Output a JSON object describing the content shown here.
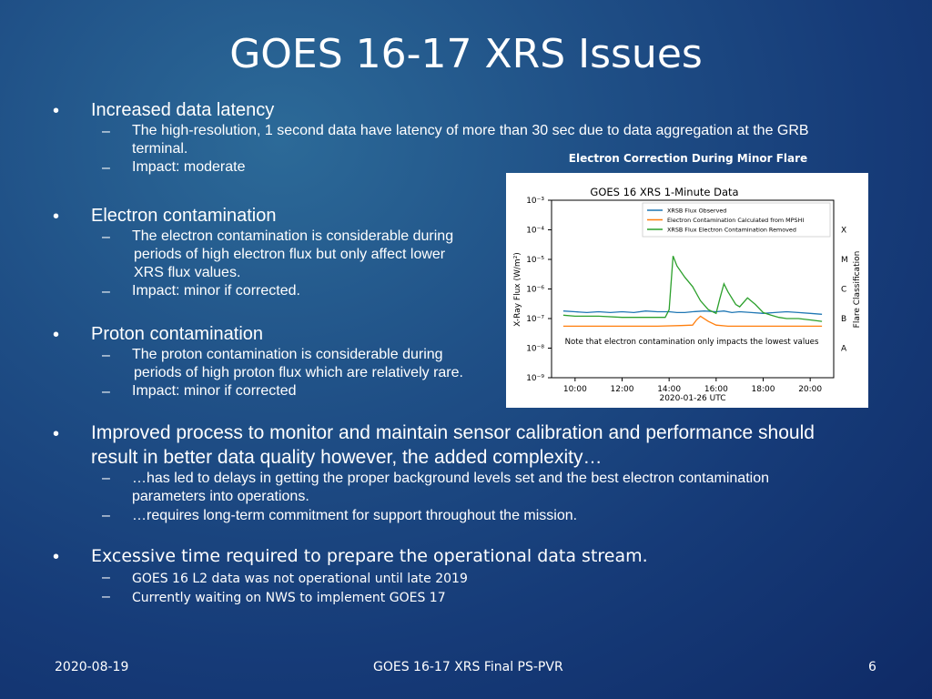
{
  "slide": {
    "title": "GOES 16-17 XRS Issues",
    "bullet_symbol": "•",
    "dash_symbol": "–",
    "sections": [
      {
        "heading": "Increased data latency",
        "items": [
          [
            "The high-resolution, 1 second data have latency of more than 30 sec due to data aggregation at the GRB",
            "terminal."
          ],
          [
            "Impact:  moderate"
          ]
        ]
      },
      {
        "heading": "Electron contamination",
        "items": [
          [
            "The electron contamination is considerable during",
            "periods of high electron flux but only affect lower",
            "XRS flux values."
          ],
          [
            "Impact: minor if corrected."
          ]
        ]
      },
      {
        "heading": "Proton contamination",
        "items": [
          [
            "The proton contamination is considerable during",
            "periods of high proton flux which are relatively rare."
          ],
          [
            "Impact: minor if corrected"
          ]
        ]
      },
      {
        "heading": [
          "Improved process to monitor and maintain sensor calibration and performance should",
          "result in better data quality however, the added complexity…"
        ],
        "items": [
          [
            "…has led to delays in getting the proper background levels set and the best electron contamination",
            "parameters into operations."
          ],
          [
            "…requires long-term commitment for support throughout the mission."
          ]
        ]
      },
      {
        "heading": "Excessive time required to prepare the operational data stream.",
        "items": [
          [
            "GOES 16 L2 data was not operational until late 2019"
          ],
          [
            "Currently waiting on NWS to implement GOES 17"
          ]
        ]
      }
    ],
    "footer": {
      "date": "2020-08-19",
      "center": "GOES  16-17 XRS Final PS-PVR",
      "page": "6"
    }
  },
  "figure": {
    "caption": "Electron Correction During Minor Flare",
    "annotation": "Note that electron contamination only impacts the lowest values"
  },
  "chart_data": {
    "type": "line",
    "title": "GOES 16 XRS 1-Minute Data",
    "xlabel": "2020-01-26 UTC",
    "ylabel": "X-Ray Flux (W/m²)",
    "y2label": "Flare Classification",
    "yscale": "log",
    "ylim": [
      1e-09,
      0.001
    ],
    "xlim": [
      "09:00",
      "21:00"
    ],
    "x_ticks": [
      "10:00",
      "12:00",
      "14:00",
      "16:00",
      "18:00",
      "20:00"
    ],
    "y_ticks": [
      "10⁻³",
      "10⁻⁴",
      "10⁻⁵",
      "10⁻⁶",
      "10⁻⁷",
      "10⁻⁸",
      "10⁻⁹"
    ],
    "flare_classes": [
      "X",
      "M",
      "C",
      "B",
      "A"
    ],
    "legend_position": "top-right",
    "series": [
      {
        "name": "XRSB Flux Observed",
        "color": "#1f77b4",
        "x": [
          "09:30",
          "10:00",
          "10:30",
          "11:00",
          "11:30",
          "12:00",
          "12:30",
          "13:00",
          "13:30",
          "14:00",
          "14:20",
          "14:40",
          "15:00",
          "15:30",
          "16:00",
          "16:20",
          "16:40",
          "17:00",
          "17:30",
          "18:00",
          "18:30",
          "19:00",
          "19:30",
          "20:00",
          "20:30"
        ],
        "values": [
          1.8e-07,
          1.7e-07,
          1.6e-07,
          1.7e-07,
          1.6e-07,
          1.7e-07,
          1.6e-07,
          1.8e-07,
          1.7e-07,
          1.7e-07,
          1.6e-07,
          1.6e-07,
          1.7e-07,
          1.8e-07,
          1.7e-07,
          1.8e-07,
          1.6e-07,
          1.7e-07,
          1.6e-07,
          1.5e-07,
          1.6e-07,
          1.7e-07,
          1.6e-07,
          1.5e-07,
          1.4e-07
        ]
      },
      {
        "name": "Electron Contamination Calculated from MPSHI",
        "color": "#ff7f0e",
        "x": [
          "09:30",
          "10:30",
          "11:30",
          "12:30",
          "13:30",
          "14:30",
          "15:00",
          "15:10",
          "15:20",
          "15:40",
          "16:00",
          "16:30",
          "17:00",
          "18:00",
          "19:00",
          "20:00",
          "20:30"
        ],
        "values": [
          5.5e-08,
          5.5e-08,
          5.5e-08,
          5.5e-08,
          5.5e-08,
          5.8e-08,
          6e-08,
          9e-08,
          1.2e-07,
          8e-08,
          6e-08,
          5.5e-08,
          5.5e-08,
          5.5e-08,
          5.5e-08,
          5.5e-08,
          5.5e-08
        ]
      },
      {
        "name": "XRSB Flux Electron Contamination Removed",
        "color": "#2ca02c",
        "x": [
          "09:30",
          "10:00",
          "11:00",
          "12:00",
          "13:00",
          "13:50",
          "14:00",
          "14:10",
          "14:20",
          "14:40",
          "15:00",
          "15:20",
          "15:40",
          "16:00",
          "16:10",
          "16:20",
          "16:30",
          "16:50",
          "17:00",
          "17:20",
          "17:40",
          "18:00",
          "18:20",
          "18:40",
          "19:00",
          "19:30",
          "20:00",
          "20:30"
        ],
        "values": [
          1.3e-07,
          1.2e-07,
          1.2e-07,
          1.1e-07,
          1.1e-07,
          1.1e-07,
          2e-07,
          1.3e-05,
          6e-06,
          2.5e-06,
          1.2e-06,
          4e-07,
          2e-07,
          1.5e-07,
          5e-07,
          1.5e-06,
          8e-07,
          3e-07,
          2.5e-07,
          5e-07,
          3e-07,
          1.6e-07,
          1.3e-07,
          1.1e-07,
          1e-07,
          1e-07,
          9e-08,
          8e-08
        ]
      }
    ]
  }
}
